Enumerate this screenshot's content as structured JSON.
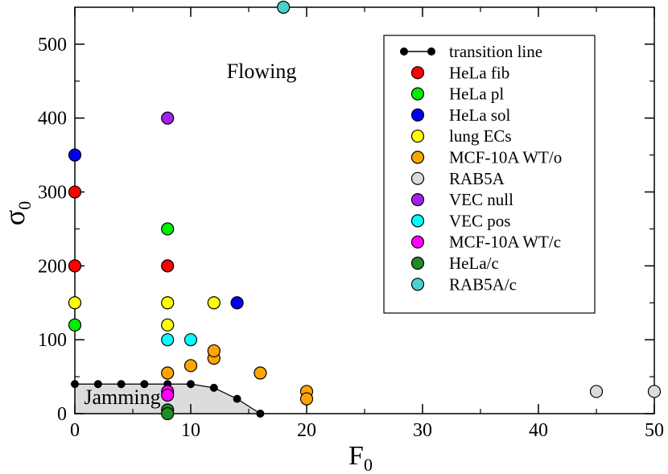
{
  "chart_data": {
    "type": "scatter",
    "title": "",
    "xlabel": "F",
    "xlabel_sub": "0",
    "ylabel": "σ",
    "ylabel_sub": "0",
    "xlim": [
      0,
      50
    ],
    "ylim": [
      0,
      550
    ],
    "xticks": [
      0,
      10,
      20,
      30,
      40,
      50
    ],
    "yticks": [
      0,
      100,
      200,
      300,
      400,
      500
    ],
    "grid": false,
    "legend_position": "top-right",
    "region_labels": {
      "flowing": "Flowing",
      "jamming": "Jamming"
    },
    "jamming_region_color": "#dcdcdc",
    "transition_line": {
      "name": "transition line",
      "color": "#000000",
      "points": [
        [
          0,
          40
        ],
        [
          2,
          40
        ],
        [
          4,
          40
        ],
        [
          6,
          40
        ],
        [
          8,
          40
        ],
        [
          10,
          40
        ],
        [
          12,
          35
        ],
        [
          14,
          20
        ],
        [
          16,
          0
        ]
      ]
    },
    "series": [
      {
        "name": "HeLa fib",
        "color": "#ff0000",
        "points": [
          [
            0,
            300
          ],
          [
            0,
            200
          ],
          [
            8,
            200
          ]
        ]
      },
      {
        "name": "HeLa pl",
        "color": "#00ee00",
        "points": [
          [
            0,
            120
          ],
          [
            8,
            250
          ]
        ]
      },
      {
        "name": "HeLa sol",
        "color": "#0000ee",
        "points": [
          [
            0,
            350
          ],
          [
            14,
            150
          ]
        ]
      },
      {
        "name": "lung ECs",
        "color": "#ffff00",
        "points": [
          [
            0,
            150
          ],
          [
            8,
            150
          ],
          [
            8,
            120
          ],
          [
            12,
            150
          ]
        ]
      },
      {
        "name": "MCF-10A WT/o",
        "color": "#ffa500",
        "points": [
          [
            8,
            55
          ],
          [
            10,
            65
          ],
          [
            12,
            75
          ],
          [
            12,
            85
          ],
          [
            16,
            55
          ],
          [
            20,
            30
          ],
          [
            20,
            20
          ]
        ]
      },
      {
        "name": "RAB5A",
        "color": "#dcdcdc",
        "points": [
          [
            45,
            30
          ],
          [
            50,
            30
          ]
        ]
      },
      {
        "name": "VEC null",
        "color": "#a020f0",
        "points": [
          [
            8,
            400
          ]
        ]
      },
      {
        "name": "VEC pos",
        "color": "#00ffff",
        "points": [
          [
            8,
            100
          ],
          [
            10,
            100
          ]
        ]
      },
      {
        "name": "MCF-10A WT/c",
        "color": "#ff00ff",
        "points": [
          [
            8,
            30
          ],
          [
            8,
            25
          ]
        ]
      },
      {
        "name": "HeLa/c",
        "color": "#228b22",
        "points": [
          [
            8,
            5
          ],
          [
            8,
            0
          ]
        ]
      },
      {
        "name": "RAB5A/c",
        "color": "#48d1cc",
        "points": [
          [
            18,
            550
          ]
        ]
      }
    ]
  }
}
